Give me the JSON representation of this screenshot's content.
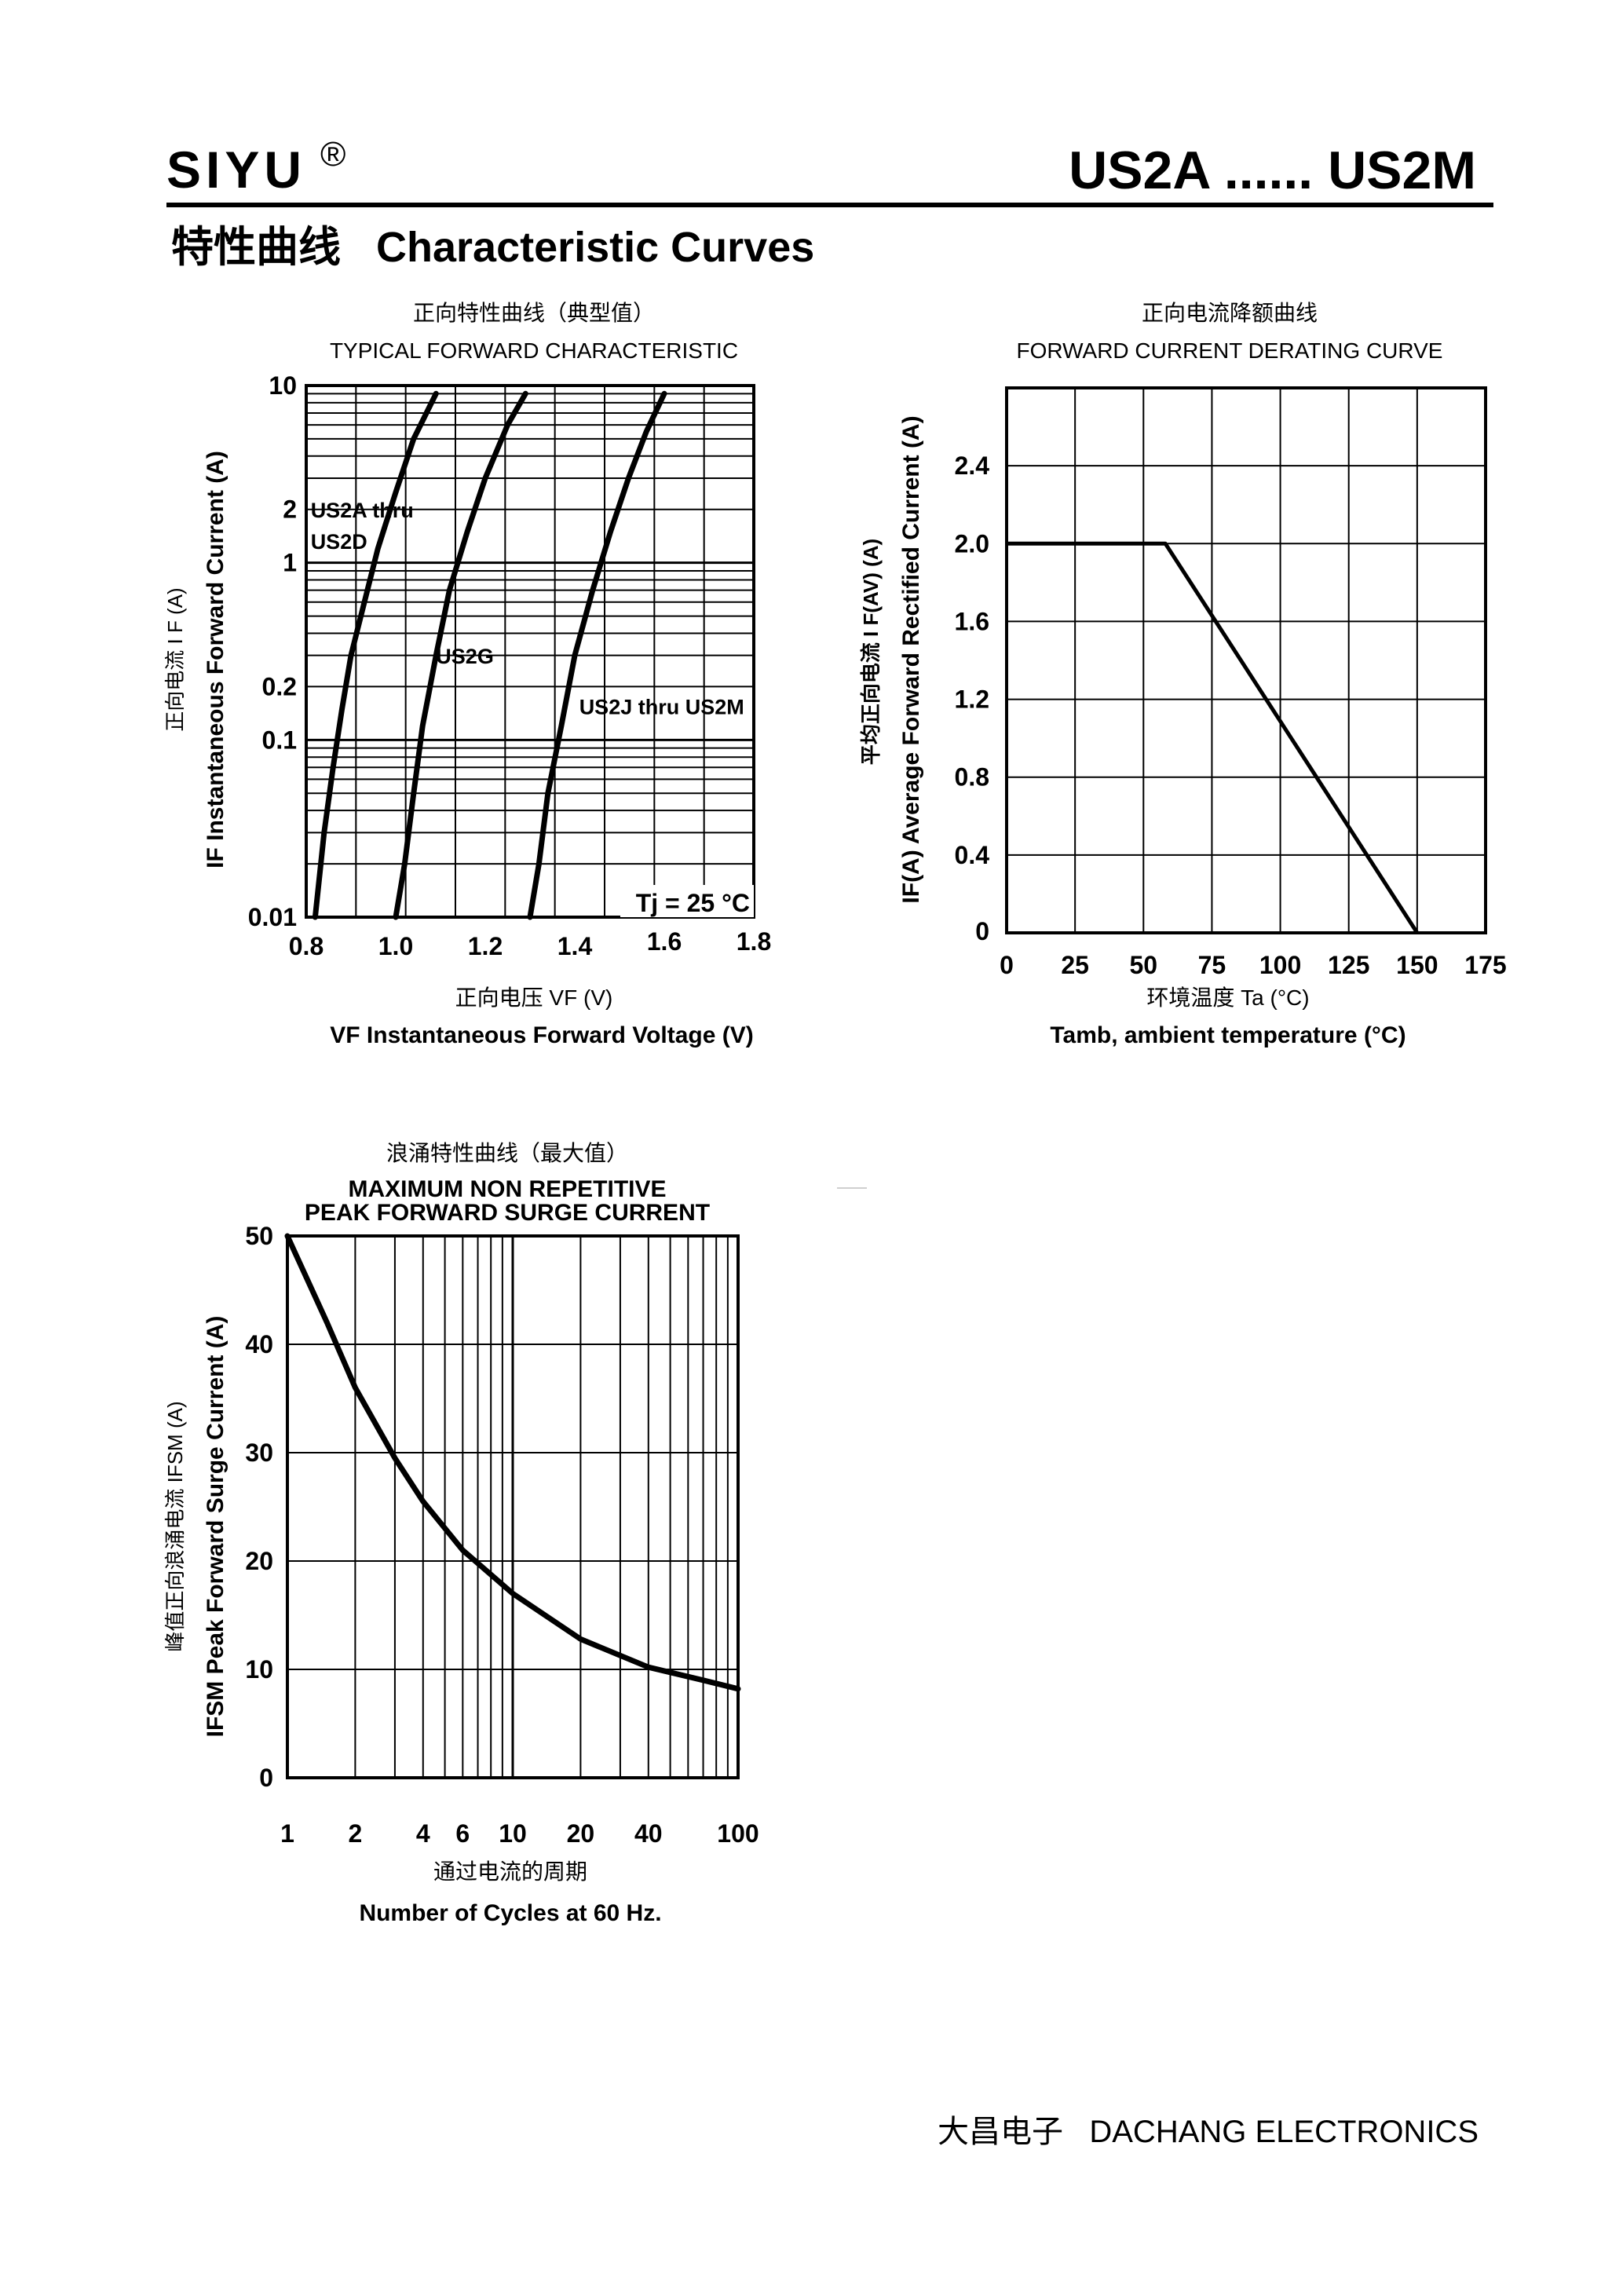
{
  "header": {
    "brand": "SIYU",
    "registered_mark": "®",
    "model_range": "US2A ...... US2M",
    "section_title": "特性曲线   Characteristic Curves"
  },
  "footer": {
    "company": "大昌电子   DACHANG ELECTRONICS"
  },
  "chart_data": [
    {
      "id": "forward",
      "type": "line",
      "title_cn": "正向特性曲线（典型值）",
      "title": "TYPICAL FORWARD CHARACTERISTIC",
      "ylabel_cn": "正向电流    I F (A)",
      "ylabel": "IF Instantaneous Forward Current (A)",
      "xlabel_cn": "正向电压    VF (V)",
      "xlabel": "VF  Instantaneous Forward Voltage (V)",
      "yscale": "log",
      "xlim": [
        0.8,
        1.8
      ],
      "ylim": [
        0.01,
        10
      ],
      "xticks": [
        "0.8",
        "1.0",
        "1.2",
        "1.4",
        "1.6",
        "1.8"
      ],
      "yticks": [
        {
          "v": 10,
          "label": "10"
        },
        {
          "v": 2,
          "label": "2"
        },
        {
          "v": 1,
          "label": "1"
        },
        {
          "v": 0.2,
          "label": "0.2"
        },
        {
          "v": 0.1,
          "label": "0.1"
        },
        {
          "v": 0.01,
          "label": "0.01"
        }
      ],
      "annotation": "Tj = 25 °C",
      "series": [
        {
          "name": "US2A thru US2D",
          "label_lines": [
            "US2A thru",
            "US2D"
          ],
          "label_at": [
            0.81,
            1.8
          ],
          "points": [
            [
              0.82,
              0.01
            ],
            [
              0.84,
              0.03
            ],
            [
              0.86,
              0.07
            ],
            [
              0.88,
              0.15
            ],
            [
              0.9,
              0.3
            ],
            [
              0.93,
              0.6
            ],
            [
              0.96,
              1.2
            ],
            [
              1.0,
              2.5
            ],
            [
              1.04,
              5
            ],
            [
              1.09,
              9
            ]
          ]
        },
        {
          "name": "US2G",
          "label_lines": [
            "US2G"
          ],
          "label_at": [
            1.09,
            0.27
          ],
          "points": [
            [
              1.0,
              0.01
            ],
            [
              1.02,
              0.02
            ],
            [
              1.04,
              0.05
            ],
            [
              1.06,
              0.12
            ],
            [
              1.09,
              0.3
            ],
            [
              1.12,
              0.7
            ],
            [
              1.16,
              1.5
            ],
            [
              1.2,
              3
            ],
            [
              1.25,
              6
            ],
            [
              1.29,
              9
            ]
          ]
        },
        {
          "name": "US2J thru US2M",
          "label_lines": [
            "US2J thru US2M"
          ],
          "label_at": [
            1.41,
            0.14
          ],
          "points": [
            [
              1.3,
              0.01
            ],
            [
              1.32,
              0.02
            ],
            [
              1.34,
              0.05
            ],
            [
              1.37,
              0.12
            ],
            [
              1.4,
              0.3
            ],
            [
              1.44,
              0.7
            ],
            [
              1.48,
              1.5
            ],
            [
              1.52,
              3
            ],
            [
              1.56,
              5.5
            ],
            [
              1.6,
              9
            ]
          ]
        }
      ]
    },
    {
      "id": "derating",
      "type": "line",
      "title_cn": "正向电流降额曲线",
      "title": "FORWARD CURRENT DERATING CURVE",
      "ylabel_cn": "平均正向电流    I F(AV)  (A)",
      "ylabel": "IF(A)  Average Forward Rectified Current (A)",
      "xlabel_cn": "环境温度  Ta (°C)",
      "xlabel": "Tamb, ambient temperature (°C)",
      "xlim": [
        0,
        175
      ],
      "ylim": [
        0,
        2.8
      ],
      "xticks": [
        "0",
        "25",
        "50",
        "75",
        "100",
        "125",
        "150",
        "175"
      ],
      "yticks": [
        "0",
        "0.4",
        "0.8",
        "1.2",
        "1.6",
        "2.0",
        "2.4"
      ],
      "grid": true,
      "series": [
        {
          "points": [
            [
              0,
              2.0
            ],
            [
              58,
              2.0
            ],
            [
              150,
              0
            ]
          ]
        }
      ]
    },
    {
      "id": "surge",
      "type": "line",
      "title_cn": "浪涌特性曲线（最大值）",
      "title_lines": [
        "MAXIMUM NON REPETITIVE",
        "PEAK FORWARD SURGE CURRENT"
      ],
      "ylabel_cn": "峰值正向浪涌电流    IFSM (A)",
      "ylabel": "IFSM  Peak Forward Surge Current (A)",
      "xlabel_cn": "通过电流的周期",
      "xlabel": "Number  of  Cycles at 60 Hz.",
      "xscale": "log",
      "xlim": [
        1,
        100
      ],
      "ylim": [
        0,
        50
      ],
      "xticks": [
        "1",
        "2",
        "4",
        "6",
        "10",
        "20",
        "40",
        "100"
      ],
      "yticks": [
        "0",
        "10",
        "20",
        "30",
        "40",
        "50"
      ],
      "series": [
        {
          "points": [
            [
              1,
              50
            ],
            [
              1.5,
              42
            ],
            [
              2,
              36
            ],
            [
              3,
              29.5
            ],
            [
              4,
              25.5
            ],
            [
              6,
              21
            ],
            [
              10,
              17
            ],
            [
              20,
              12.8
            ],
            [
              40,
              10.2
            ],
            [
              70,
              9
            ],
            [
              100,
              8.2
            ]
          ]
        }
      ]
    }
  ]
}
